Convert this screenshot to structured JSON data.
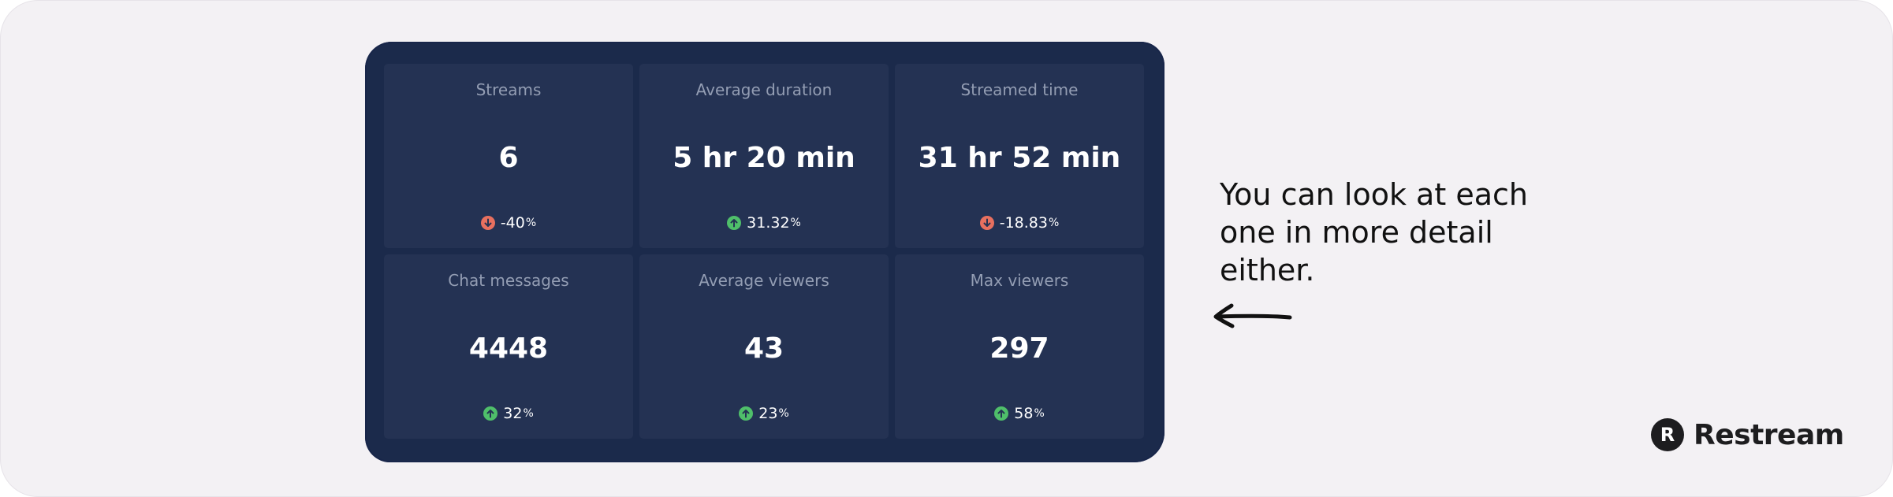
{
  "stats": [
    {
      "title": "Streams",
      "value": "6",
      "change": "-40",
      "unit": "%",
      "direction": "down"
    },
    {
      "title": "Average duration",
      "value": "5 hr 20 min",
      "change": "31.32",
      "unit": "%",
      "direction": "up"
    },
    {
      "title": "Streamed time",
      "value": "31 hr 52 min",
      "change": "-18.83",
      "unit": "%",
      "direction": "down"
    },
    {
      "title": "Chat messages",
      "value": "4448",
      "change": "32",
      "unit": "%",
      "direction": "up"
    },
    {
      "title": "Average viewers",
      "value": "43",
      "change": "23",
      "unit": "%",
      "direction": "up"
    },
    {
      "title": "Max viewers",
      "value": "297",
      "change": "58",
      "unit": "%",
      "direction": "up"
    }
  ],
  "note": {
    "lines": [
      "You can look at each",
      "one in more detail",
      "either."
    ]
  },
  "brand": {
    "mark": "R",
    "name": "Restream"
  },
  "colors": {
    "up": "#4fbf6a",
    "down": "#e8705f",
    "panel": "#1b2a4b",
    "card": "#243253"
  },
  "icons": {
    "up": "arrow-up-circle-icon",
    "down": "arrow-down-circle-icon",
    "pointer": "arrow-left-icon"
  }
}
